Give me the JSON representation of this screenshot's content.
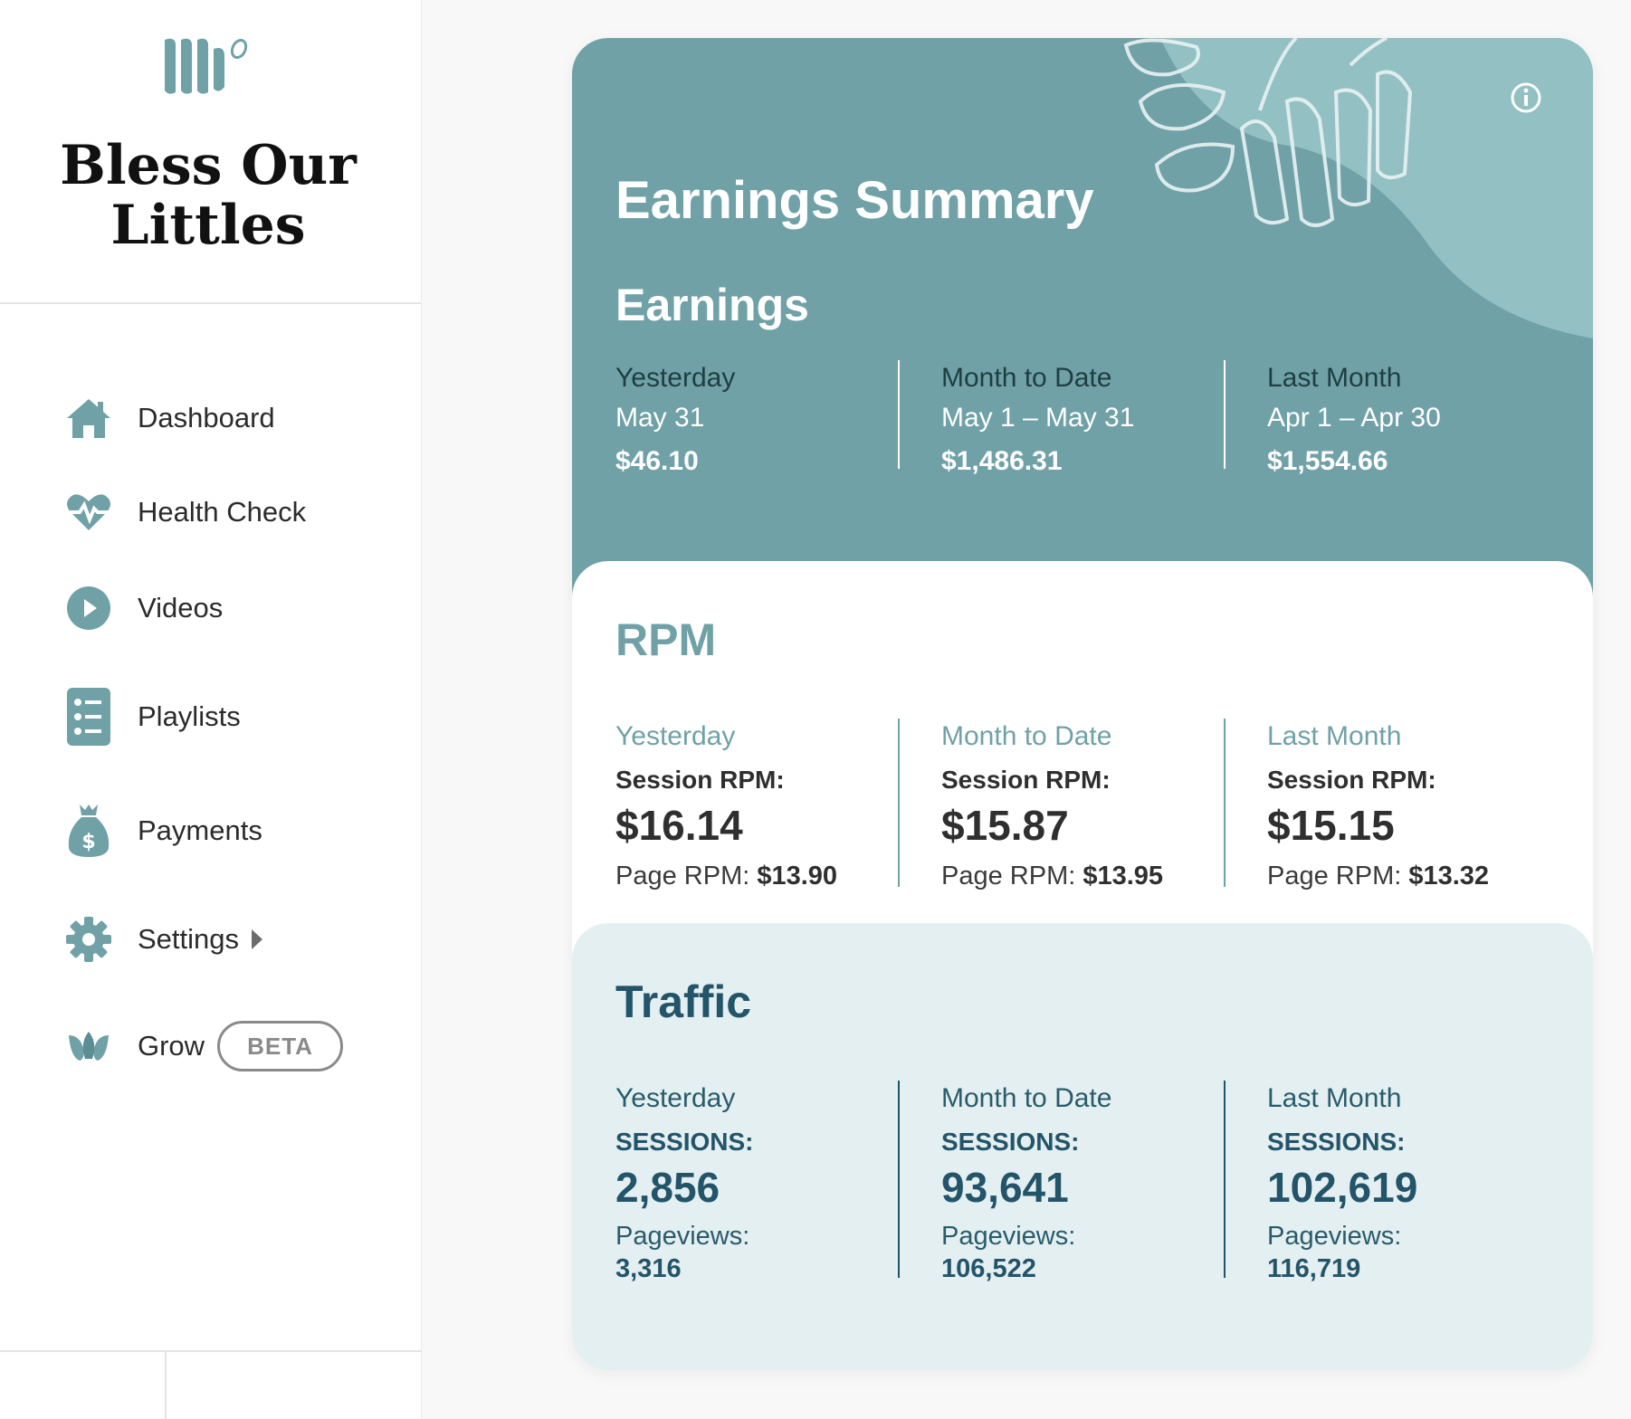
{
  "brand": {
    "name_line1": "Bless Our",
    "name_line2": "Littles"
  },
  "nav": {
    "items": [
      {
        "label": "Dashboard",
        "icon": "home-icon"
      },
      {
        "label": "Health Check",
        "icon": "heartbeat-icon"
      },
      {
        "label": "Videos",
        "icon": "play-circle-icon"
      },
      {
        "label": "Playlists",
        "icon": "list-icon"
      },
      {
        "label": "Payments",
        "icon": "money-bag-icon"
      },
      {
        "label": "Settings",
        "icon": "gear-icon"
      },
      {
        "label": "Grow",
        "icon": "leaf-icon",
        "badge": "BETA"
      }
    ]
  },
  "colors": {
    "accent": "#6fa1a7",
    "traffic_bg": "#e3eff0",
    "traffic_text": "#23546a"
  },
  "summary": {
    "title": "Earnings Summary",
    "earnings": {
      "title": "Earnings",
      "columns": [
        {
          "label": "Yesterday",
          "range": "May 31",
          "value": "$46.10"
        },
        {
          "label": "Month to Date",
          "range": "May 1 – May 31",
          "value": "$1,486.31"
        },
        {
          "label": "Last Month",
          "range": "Apr 1 – Apr 30",
          "value": "$1,554.66"
        }
      ]
    },
    "rpm": {
      "title": "RPM",
      "columns": [
        {
          "label": "Yesterday",
          "session_label": "Session RPM:",
          "session_value": "$16.14",
          "page_label": "Page RPM:",
          "page_value": "$13.90"
        },
        {
          "label": "Month to Date",
          "session_label": "Session RPM:",
          "session_value": "$15.87",
          "page_label": "Page RPM:",
          "page_value": "$13.95"
        },
        {
          "label": "Last Month",
          "session_label": "Session RPM:",
          "session_value": "$15.15",
          "page_label": "Page RPM:",
          "page_value": "$13.32"
        }
      ]
    },
    "traffic": {
      "title": "Traffic",
      "columns": [
        {
          "label": "Yesterday",
          "sessions_label": "SESSIONS:",
          "sessions_value": "2,856",
          "pageviews_label": "Pageviews:",
          "pageviews_value": "3,316"
        },
        {
          "label": "Month to Date",
          "sessions_label": "SESSIONS:",
          "sessions_value": "93,641",
          "pageviews_label": "Pageviews:",
          "pageviews_value": "106,522"
        },
        {
          "label": "Last Month",
          "sessions_label": "SESSIONS:",
          "sessions_value": "102,619",
          "pageviews_label": "Pageviews:",
          "pageviews_value": "116,719"
        }
      ]
    }
  }
}
